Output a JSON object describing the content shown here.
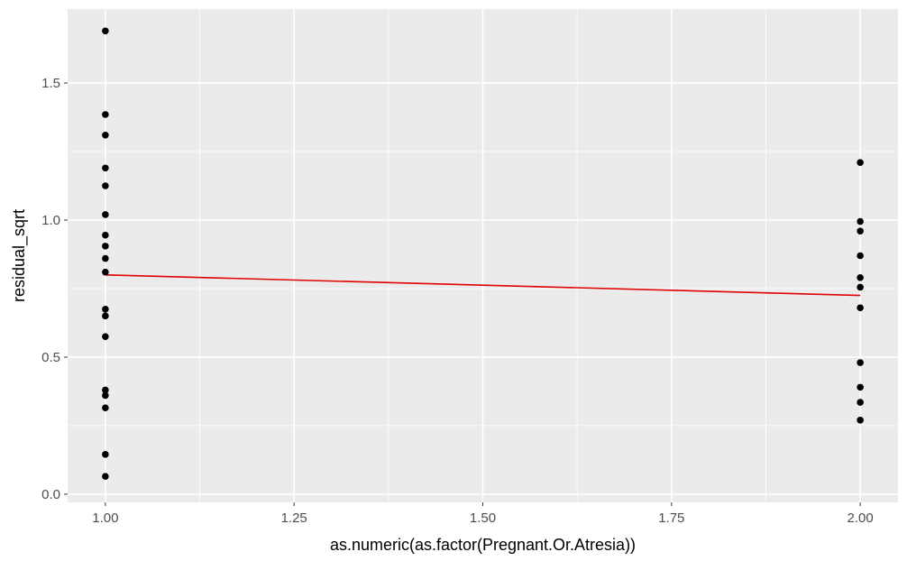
{
  "chart_data": {
    "type": "scatter",
    "xlabel": "as.numeric(as.factor(Pregnant.Or.Atresia))",
    "ylabel": "residual_sqrt",
    "xlim": [
      0.95,
      2.05
    ],
    "ylim": [
      -0.03,
      1.77
    ],
    "x_ticks": [
      1.0,
      1.25,
      1.5,
      1.75,
      2.0
    ],
    "x_tick_labels": [
      "1.00",
      "1.25",
      "1.50",
      "1.75",
      "2.00"
    ],
    "y_ticks": [
      0.0,
      0.5,
      1.0,
      1.5
    ],
    "y_tick_labels": [
      "0.0",
      "0.5",
      "1.0",
      "1.5"
    ],
    "grid": true,
    "panel_background": "#ebebeb",
    "grid_color": "#ffffff",
    "point_color": "#000000",
    "trend_color": "#e00000",
    "points": [
      {
        "x": 1,
        "y": 1.69
      },
      {
        "x": 1,
        "y": 1.385
      },
      {
        "x": 1,
        "y": 1.31
      },
      {
        "x": 1,
        "y": 1.19
      },
      {
        "x": 1,
        "y": 1.125
      },
      {
        "x": 1,
        "y": 1.02
      },
      {
        "x": 1,
        "y": 0.945
      },
      {
        "x": 1,
        "y": 0.905
      },
      {
        "x": 1,
        "y": 0.86
      },
      {
        "x": 1,
        "y": 0.81
      },
      {
        "x": 1,
        "y": 0.675
      },
      {
        "x": 1,
        "y": 0.65
      },
      {
        "x": 1,
        "y": 0.575
      },
      {
        "x": 1,
        "y": 0.38
      },
      {
        "x": 1,
        "y": 0.36
      },
      {
        "x": 1,
        "y": 0.315
      },
      {
        "x": 1,
        "y": 0.145
      },
      {
        "x": 1,
        "y": 0.065
      },
      {
        "x": 2,
        "y": 1.21
      },
      {
        "x": 2,
        "y": 0.995
      },
      {
        "x": 2,
        "y": 0.96
      },
      {
        "x": 2,
        "y": 0.87
      },
      {
        "x": 2,
        "y": 0.79
      },
      {
        "x": 2,
        "y": 0.755
      },
      {
        "x": 2,
        "y": 0.68
      },
      {
        "x": 2,
        "y": 0.48
      },
      {
        "x": 2,
        "y": 0.39
      },
      {
        "x": 2,
        "y": 0.335
      },
      {
        "x": 2,
        "y": 0.27
      }
    ],
    "trend_line": {
      "x": [
        1.0,
        2.0
      ],
      "y": [
        0.8,
        0.725
      ]
    }
  }
}
